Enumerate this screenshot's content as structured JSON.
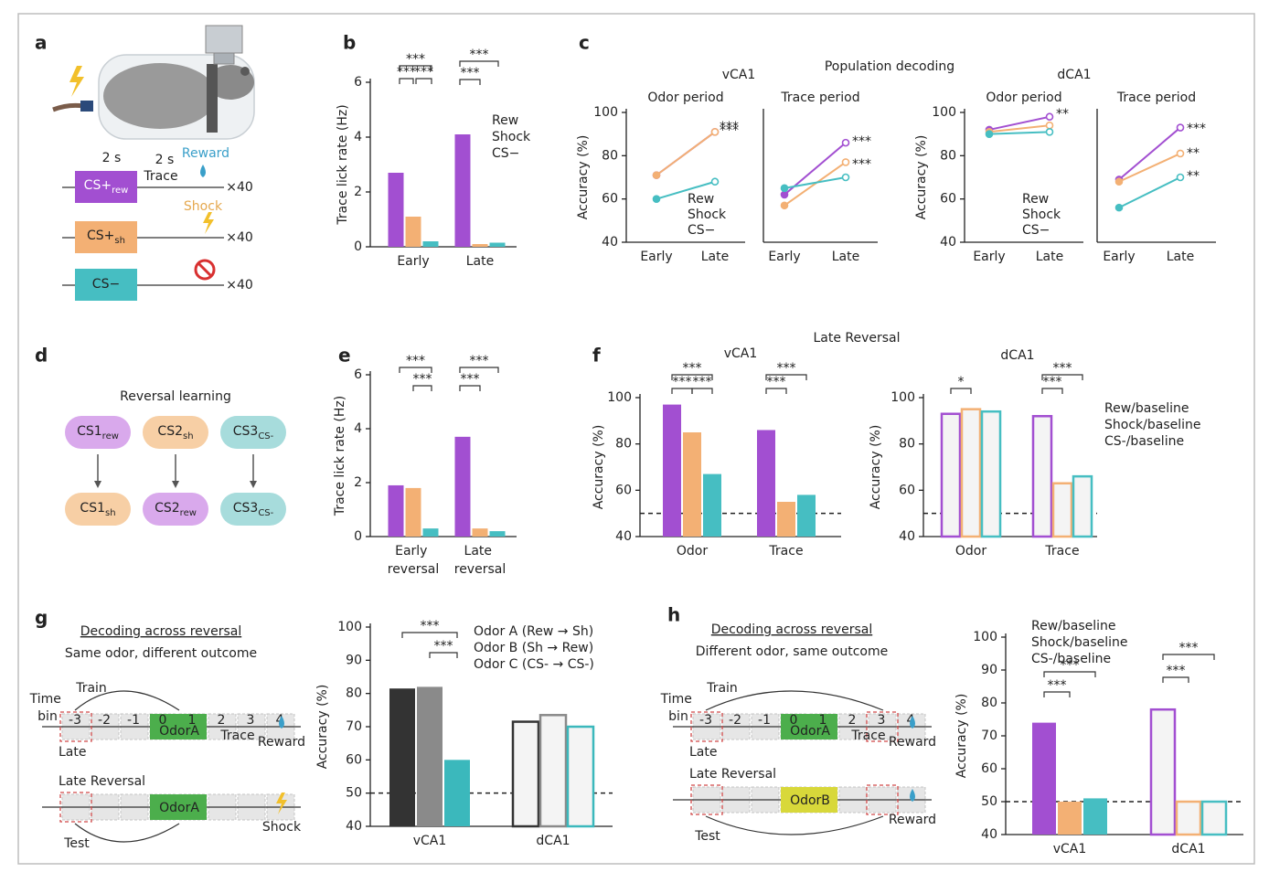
{
  "panel_labels": [
    "a",
    "b",
    "c",
    "d",
    "e",
    "f",
    "g",
    "h"
  ],
  "diagrams": {
    "a": {
      "durations": [
        "2 s",
        "2 s"
      ],
      "trace": "Trace",
      "reward": "Reward",
      "shock": "Shock",
      "cues": [
        {
          "text": "CS+",
          "sub": "rew"
        },
        {
          "text": "CS+",
          "sub": "sh"
        },
        {
          "text": "CS−"
        }
      ],
      "repeats": [
        "×40",
        "×40",
        "×40"
      ]
    },
    "d": {
      "title": "Reversal learning",
      "before": [
        {
          "text": "CS1",
          "sub": "rew"
        },
        {
          "text": "CS2",
          "sub": "sh"
        },
        {
          "text": "CS3",
          "sub": "CS-"
        }
      ],
      "after": [
        {
          "text": "CS1",
          "sub": "sh"
        },
        {
          "text": "CS2",
          "sub": "rew"
        },
        {
          "text": "CS3",
          "sub": "CS-"
        }
      ]
    },
    "g": {
      "title": "Decoding across reversal",
      "subtitle": "Same odor, different outcome",
      "train": "Train",
      "time_bin": "Time bin",
      "bins": [
        "-3",
        "-2",
        "-1",
        "0",
        "1",
        " 2",
        "3",
        "4"
      ],
      "odor_top": "OdorA",
      "trace": "Trace",
      "reward": "Reward",
      "late": "Late",
      "late_reversal": "Late Reversal",
      "odor_bottom": "OdorA",
      "outcome_bottom": "Shock",
      "test": "Test"
    },
    "h": {
      "title": "Decoding across reversal",
      "subtitle": "Different odor, same outcome",
      "train": "Train",
      "time_bin": "Time bin",
      "bins": [
        "-3",
        "-2",
        "-1",
        "0",
        "1",
        "2",
        "3",
        "4"
      ],
      "odor_top": "OdorA",
      "trace": "Trace",
      "reward": "Reward",
      "late": "Late",
      "late_reversal": "Late Reversal",
      "odor_bottom": "OdorB",
      "outcome_bottom": "Reward",
      "test": "Test"
    }
  },
  "chart_data": [
    {
      "type": "bar",
      "ylabel": "Trace lick rate (Hz)",
      "categories": [
        "Early",
        "Late"
      ],
      "ylim": [
        0,
        6
      ],
      "yticks": [
        0,
        2,
        4,
        6
      ],
      "series": [
        {
          "name": "Rew",
          "color": "#a24fd1",
          "values": [
            2.7,
            4.1
          ]
        },
        {
          "name": "Shock",
          "color": "#f3b074",
          "values": [
            1.1,
            0.1
          ]
        },
        {
          "name": "CS−",
          "color": "#46bec2",
          "values": [
            0.2,
            0.15
          ]
        }
      ],
      "annotations": [
        "***",
        "***",
        "***",
        "***",
        "***"
      ]
    },
    {
      "type": "line",
      "suptitle": "Population decoding",
      "group": "vCA1",
      "subtitle": "Odor period",
      "ylabel": "Accuracy (%)",
      "categories": [
        "Early",
        "Late"
      ],
      "ylim": [
        40,
        100
      ],
      "yticks": [
        40,
        60,
        80,
        100
      ],
      "series": [
        {
          "name": "Rew",
          "color": "#a24fd1",
          "values": [
            71,
            91
          ]
        },
        {
          "name": "Shock",
          "color": "#f3b074",
          "values": [
            71,
            91
          ]
        },
        {
          "name": "CS−",
          "color": "#46bec2",
          "values": [
            60,
            68
          ]
        }
      ],
      "annotations": [
        {
          "text": "***",
          "color": "#a24fd1"
        },
        {
          "text": "***",
          "color": "#f3b074"
        }
      ]
    },
    {
      "type": "line",
      "subtitle": "Trace period",
      "categories": [
        "Early",
        "Late"
      ],
      "ylim": [
        40,
        100
      ],
      "series": [
        {
          "name": "Rew",
          "color": "#a24fd1",
          "values": [
            62,
            86
          ]
        },
        {
          "name": "Shock",
          "color": "#f3b074",
          "values": [
            57,
            77
          ]
        },
        {
          "name": "CS−",
          "color": "#46bec2",
          "values": [
            65,
            70
          ]
        }
      ],
      "annotations": [
        {
          "text": "***",
          "color": "#a24fd1"
        },
        {
          "text": "***",
          "color": "#f3b074"
        }
      ]
    },
    {
      "type": "line",
      "group": "dCA1",
      "subtitle": "Odor period",
      "ylabel": "Accuracy (%)",
      "categories": [
        "Early",
        "Late"
      ],
      "ylim": [
        40,
        100
      ],
      "yticks": [
        40,
        60,
        80,
        100
      ],
      "series": [
        {
          "name": "Rew",
          "color": "#a24fd1",
          "values": [
            92,
            98
          ]
        },
        {
          "name": "Shock",
          "color": "#f3b074",
          "values": [
            91,
            94
          ]
        },
        {
          "name": "CS−",
          "color": "#46bec2",
          "values": [
            90,
            91
          ]
        }
      ],
      "annotations": [
        {
          "text": "**",
          "color": "#a24fd1"
        }
      ]
    },
    {
      "type": "line",
      "subtitle": "Trace period",
      "categories": [
        "Early",
        "Late"
      ],
      "ylim": [
        40,
        100
      ],
      "series": [
        {
          "name": "Rew",
          "color": "#a24fd1",
          "values": [
            69,
            93
          ]
        },
        {
          "name": "Shock",
          "color": "#f3b074",
          "values": [
            68,
            81
          ]
        },
        {
          "name": "CS−",
          "color": "#46bec2",
          "values": [
            56,
            70
          ]
        }
      ],
      "annotations": [
        {
          "text": "***",
          "color": "#a24fd1"
        },
        {
          "text": "**",
          "color": "#f3b074"
        },
        {
          "text": "**",
          "color": "#46bec2"
        }
      ]
    },
    {
      "type": "bar",
      "ylabel": "Trace lick rate (Hz)",
      "categories": [
        "Early reversal",
        "Late reversal"
      ],
      "ylim": [
        0,
        6
      ],
      "yticks": [
        0,
        2,
        4,
        6
      ],
      "series": [
        {
          "name": "Rew",
          "color": "#a24fd1",
          "values": [
            1.9,
            3.7
          ]
        },
        {
          "name": "Shock",
          "color": "#f3b074",
          "values": [
            1.8,
            0.3
          ]
        },
        {
          "name": "CS−",
          "color": "#46bec2",
          "values": [
            0.3,
            0.2
          ]
        }
      ],
      "annotations": [
        "***",
        "***",
        "***",
        "***"
      ]
    },
    {
      "type": "bar",
      "suptitle": "Late Reversal",
      "group": "vCA1",
      "ylabel": "Accuracy (%)",
      "categories": [
        "Odor",
        "Trace"
      ],
      "ylim": [
        40,
        100
      ],
      "yticks": [
        40,
        60,
        80,
        100
      ],
      "reference_line": 50,
      "outlined": false,
      "series": [
        {
          "name": "Rew",
          "color": "#a24fd1",
          "values": [
            97,
            86
          ]
        },
        {
          "name": "Shock",
          "color": "#f3b074",
          "values": [
            85,
            55
          ]
        },
        {
          "name": "CS−",
          "color": "#46bec2",
          "values": [
            67,
            58
          ]
        }
      ],
      "annotations": [
        "***",
        "***",
        "***",
        "***",
        "***"
      ]
    },
    {
      "type": "bar",
      "group": "dCA1",
      "ylabel": "Accuracy (%)",
      "categories": [
        "Odor",
        "Trace"
      ],
      "ylim": [
        40,
        100
      ],
      "yticks": [
        40,
        60,
        80,
        100
      ],
      "reference_line": 50,
      "outlined": true,
      "series": [
        {
          "name": "Rew/baseline",
          "color": "#a24fd1",
          "values": [
            93,
            92
          ]
        },
        {
          "name": "Shock/baseline",
          "color": "#f3b074",
          "values": [
            95,
            63
          ]
        },
        {
          "name": "CS-/baseline",
          "color": "#46bec2",
          "values": [
            94,
            66
          ]
        }
      ],
      "annotations": [
        "*",
        "***",
        "***"
      ]
    },
    {
      "type": "bar",
      "ylabel": "Accuracy (%)",
      "categories": [
        "vCA1",
        "dCA1"
      ],
      "ylim": [
        40,
        100
      ],
      "yticks": [
        40,
        50,
        60,
        70,
        80,
        90,
        100
      ],
      "reference_line": 50,
      "outlined": [
        false,
        true
      ],
      "series": [
        {
          "name": "Odor A (Rew → Sh)",
          "color": "#333333",
          "values": [
            81.5,
            71.5
          ]
        },
        {
          "name": "Odor B (Sh → Rew)",
          "color": "#8a8a8a",
          "values": [
            82,
            73.5
          ]
        },
        {
          "name": "Odor C (CS- → CS-)",
          "color": "#3bb8bc",
          "values": [
            60,
            70
          ]
        }
      ],
      "annotations": [
        "***",
        "***"
      ]
    },
    {
      "type": "bar",
      "ylabel": "Accuracy (%)",
      "categories": [
        "vCA1",
        "dCA1"
      ],
      "ylim": [
        40,
        100
      ],
      "yticks": [
        40,
        50,
        60,
        70,
        80,
        90,
        100
      ],
      "reference_line": 50,
      "outlined": [
        false,
        true
      ],
      "series": [
        {
          "name": "Rew/baseline",
          "color": "#a24fd1",
          "values": [
            74,
            78
          ]
        },
        {
          "name": "Shock/baseline",
          "color": "#f3b074",
          "values": [
            50,
            50
          ]
        },
        {
          "name": "CS-/baseline",
          "color": "#46bec2",
          "values": [
            51,
            50
          ]
        }
      ],
      "annotations": [
        "***",
        "***",
        "***",
        "***"
      ]
    }
  ]
}
